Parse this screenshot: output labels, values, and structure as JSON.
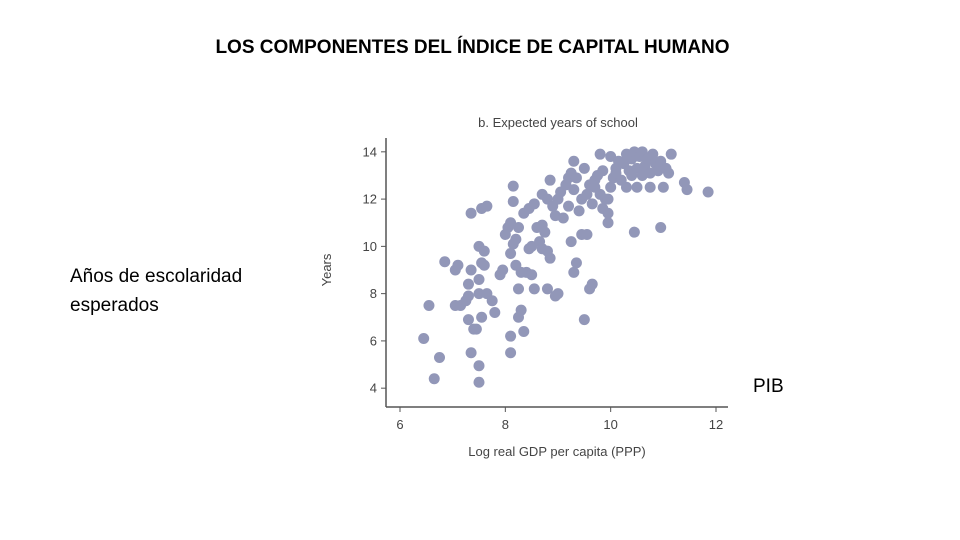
{
  "slide": {
    "title": "LOS COMPONENTES DEL ÍNDICE DE CAPITAL HUMANO",
    "side_label": "Años de escolaridad esperados",
    "pib_label": "PIB"
  },
  "chart_data": {
    "type": "scatter",
    "title": "b. Expected years of school",
    "xlabel": "Log real GDP per capita (PPP)",
    "ylabel": "Years",
    "xlim": [
      6,
      12
    ],
    "ylim": [
      3.5,
      14.5
    ],
    "xticks": [
      6,
      8,
      10,
      12
    ],
    "yticks": [
      4,
      6,
      8,
      10,
      12,
      14
    ],
    "grid": false,
    "point_color": "#9297b8",
    "axis_color": "#555555",
    "points": [
      [
        6.45,
        6.1
      ],
      [
        6.55,
        7.5
      ],
      [
        6.65,
        4.4
      ],
      [
        6.75,
        5.3
      ],
      [
        6.85,
        9.35
      ],
      [
        7.05,
        9.0
      ],
      [
        7.1,
        9.2
      ],
      [
        7.05,
        7.5
      ],
      [
        7.15,
        7.5
      ],
      [
        7.25,
        7.7
      ],
      [
        7.3,
        8.4
      ],
      [
        7.3,
        7.9
      ],
      [
        7.35,
        9.0
      ],
      [
        7.3,
        6.9
      ],
      [
        7.35,
        5.5
      ],
      [
        7.4,
        6.5
      ],
      [
        7.45,
        6.5
      ],
      [
        7.5,
        4.95
      ],
      [
        7.5,
        4.25
      ],
      [
        7.5,
        8.0
      ],
      [
        7.5,
        8.6
      ],
      [
        7.55,
        7.0
      ],
      [
        7.5,
        10.0
      ],
      [
        7.6,
        9.8
      ],
      [
        7.55,
        9.3
      ],
      [
        7.6,
        9.2
      ],
      [
        7.65,
        8.0
      ],
      [
        7.75,
        7.7
      ],
      [
        7.8,
        7.2
      ],
      [
        7.35,
        11.4
      ],
      [
        7.55,
        11.6
      ],
      [
        7.65,
        11.7
      ],
      [
        7.9,
        8.8
      ],
      [
        7.95,
        9.0
      ],
      [
        8.0,
        10.5
      ],
      [
        8.05,
        10.8
      ],
      [
        8.1,
        11.0
      ],
      [
        8.15,
        11.9
      ],
      [
        8.15,
        12.55
      ],
      [
        8.1,
        9.7
      ],
      [
        8.15,
        10.1
      ],
      [
        8.2,
        10.3
      ],
      [
        8.25,
        10.8
      ],
      [
        8.2,
        9.2
      ],
      [
        8.3,
        8.9
      ],
      [
        8.25,
        8.2
      ],
      [
        8.25,
        7.0
      ],
      [
        8.3,
        7.3
      ],
      [
        8.35,
        6.4
      ],
      [
        8.1,
        6.2
      ],
      [
        8.1,
        5.5
      ],
      [
        8.35,
        11.4
      ],
      [
        8.45,
        11.6
      ],
      [
        8.55,
        11.8
      ],
      [
        8.5,
        10.0
      ],
      [
        8.45,
        9.9
      ],
      [
        8.4,
        8.9
      ],
      [
        8.5,
        8.8
      ],
      [
        8.55,
        8.2
      ],
      [
        8.6,
        10.8
      ],
      [
        8.7,
        10.9
      ],
      [
        8.65,
        10.2
      ],
      [
        8.7,
        9.9
      ],
      [
        8.8,
        9.8
      ],
      [
        8.85,
        9.5
      ],
      [
        8.7,
        12.2
      ],
      [
        8.8,
        12.0
      ],
      [
        8.85,
        12.8
      ],
      [
        8.9,
        11.7
      ],
      [
        8.95,
        11.3
      ],
      [
        8.95,
        7.9
      ],
      [
        9.0,
        8.0
      ],
      [
        8.8,
        8.2
      ],
      [
        8.75,
        10.6
      ],
      [
        9.0,
        12.0
      ],
      [
        9.05,
        12.3
      ],
      [
        9.1,
        11.2
      ],
      [
        9.15,
        12.6
      ],
      [
        9.2,
        12.9
      ],
      [
        9.25,
        13.1
      ],
      [
        9.3,
        13.6
      ],
      [
        9.3,
        12.4
      ],
      [
        9.35,
        12.9
      ],
      [
        9.25,
        10.2
      ],
      [
        9.3,
        8.9
      ],
      [
        9.35,
        9.3
      ],
      [
        9.2,
        11.7
      ],
      [
        9.4,
        11.5
      ],
      [
        9.45,
        12.0
      ],
      [
        9.45,
        10.5
      ],
      [
        9.5,
        6.9
      ],
      [
        9.5,
        13.3
      ],
      [
        9.55,
        12.2
      ],
      [
        9.55,
        10.5
      ],
      [
        9.6,
        8.2
      ],
      [
        9.65,
        8.4
      ],
      [
        9.6,
        12.6
      ],
      [
        9.65,
        11.8
      ],
      [
        9.7,
        12.8
      ],
      [
        9.75,
        13.0
      ],
      [
        9.8,
        13.9
      ],
      [
        9.8,
        12.2
      ],
      [
        9.85,
        11.6
      ],
      [
        9.85,
        13.2
      ],
      [
        9.9,
        12.0
      ],
      [
        9.95,
        11.0
      ],
      [
        9.95,
        11.4
      ],
      [
        10.0,
        12.5
      ],
      [
        10.05,
        12.9
      ],
      [
        10.0,
        13.8
      ],
      [
        10.1,
        13.3
      ],
      [
        10.15,
        13.6
      ],
      [
        10.2,
        12.8
      ],
      [
        10.25,
        13.5
      ],
      [
        10.3,
        13.9
      ],
      [
        10.3,
        12.5
      ],
      [
        10.35,
        13.2
      ],
      [
        10.4,
        13.7
      ],
      [
        10.45,
        14.0
      ],
      [
        10.45,
        10.6
      ],
      [
        10.5,
        13.3
      ],
      [
        10.5,
        12.5
      ],
      [
        10.55,
        13.8
      ],
      [
        10.6,
        14.0
      ],
      [
        10.6,
        13.0
      ],
      [
        10.65,
        13.4
      ],
      [
        10.7,
        13.7
      ],
      [
        10.75,
        12.5
      ],
      [
        10.75,
        13.1
      ],
      [
        10.8,
        13.9
      ],
      [
        10.85,
        13.5
      ],
      [
        10.9,
        13.2
      ],
      [
        10.95,
        13.6
      ],
      [
        10.95,
        10.8
      ],
      [
        11.0,
        12.5
      ],
      [
        11.05,
        13.3
      ],
      [
        11.1,
        13.1
      ],
      [
        11.15,
        13.9
      ],
      [
        11.4,
        12.7
      ],
      [
        11.45,
        12.4
      ],
      [
        11.85,
        12.3
      ],
      [
        9.95,
        12.0
      ],
      [
        10.1,
        13.1
      ],
      [
        9.7,
        12.5
      ],
      [
        10.4,
        13.0
      ]
    ]
  }
}
